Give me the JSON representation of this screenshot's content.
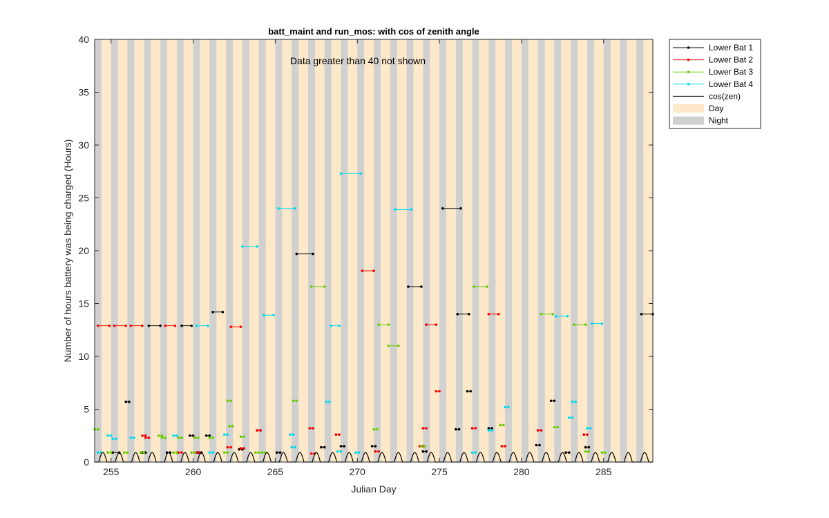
{
  "chart_data": {
    "type": "line",
    "title": "batt_maint and run_mos: with cos of zenith angle",
    "xlabel": "Julian Day",
    "ylabel": "Number of hours battery was being charged (Hours)",
    "annotation": "Data greater than 40 not shown",
    "xlim": [
      254,
      288
    ],
    "ylim": [
      0,
      40
    ],
    "xticks": [
      255,
      260,
      265,
      270,
      275,
      280,
      285
    ],
    "yticks": [
      0,
      5,
      10,
      15,
      20,
      25,
      30,
      35,
      40
    ],
    "legend_position": "outside-top-right",
    "day_night_bands": {
      "day_color": "#fde9c9",
      "night_color": "#d0d0d0",
      "day_start_fraction": 0.42,
      "day_length_fraction": 0.58
    },
    "series": [
      {
        "name": "Lower Bat 1",
        "color": "#000000",
        "segments": [
          [
            [
              255.1,
              0.9
            ],
            [
              255.5,
              0.9
            ]
          ],
          [
            [
              255.9,
              5.7
            ],
            [
              256.1,
              5.7
            ]
          ],
          [
            [
              256.9,
              0.9
            ],
            [
              257.1,
              0.9
            ]
          ],
          [
            [
              257.3,
              12.9
            ],
            [
              258.0,
              12.9
            ]
          ],
          [
            [
              258.4,
              0.9
            ],
            [
              258.6,
              0.9
            ]
          ],
          [
            [
              259.3,
              12.9
            ],
            [
              259.9,
              12.9
            ]
          ],
          [
            [
              259.8,
              2.5
            ],
            [
              260.0,
              2.5
            ]
          ],
          [
            [
              260.3,
              0.9
            ],
            [
              260.5,
              0.9
            ]
          ],
          [
            [
              260.8,
              2.5
            ],
            [
              261.0,
              2.5
            ]
          ],
          [
            [
              261.2,
              14.2
            ],
            [
              261.8,
              14.2
            ]
          ],
          [
            [
              262.8,
              1.2
            ],
            [
              263.0,
              1.2
            ]
          ],
          [
            [
              263.9,
              3.0
            ],
            [
              264.1,
              3.0
            ]
          ],
          [
            [
              265.1,
              0.9
            ],
            [
              265.3,
              0.9
            ]
          ],
          [
            [
              266.3,
              19.7
            ],
            [
              267.3,
              19.7
            ]
          ],
          [
            [
              267.8,
              1.4
            ],
            [
              268.0,
              1.4
            ]
          ],
          [
            [
              269.0,
              1.5
            ],
            [
              269.2,
              1.5
            ]
          ],
          [
            [
              270.9,
              1.5
            ],
            [
              271.1,
              1.5
            ]
          ],
          [
            [
              273.1,
              16.6
            ],
            [
              273.9,
              16.6
            ]
          ],
          [
            [
              274.0,
              1.0
            ],
            [
              274.2,
              1.0
            ]
          ],
          [
            [
              275.2,
              24.0
            ],
            [
              276.3,
              24.0
            ]
          ],
          [
            [
              276.0,
              3.1
            ],
            [
              276.2,
              3.1
            ]
          ],
          [
            [
              276.1,
              14.0
            ],
            [
              276.8,
              14.0
            ]
          ],
          [
            [
              276.7,
              6.7
            ],
            [
              276.9,
              6.7
            ]
          ],
          [
            [
              278.0,
              3.2
            ],
            [
              278.2,
              3.2
            ]
          ],
          [
            [
              280.9,
              1.6
            ],
            [
              281.1,
              1.6
            ]
          ],
          [
            [
              281.8,
              5.8
            ],
            [
              282.0,
              5.8
            ]
          ],
          [
            [
              282.7,
              0.9
            ],
            [
              282.9,
              0.9
            ]
          ],
          [
            [
              283.9,
              1.4
            ],
            [
              284.1,
              1.4
            ]
          ],
          [
            [
              287.3,
              14.0
            ],
            [
              288.0,
              14.0
            ]
          ]
        ]
      },
      {
        "name": "Lower Bat 2",
        "color": "#ff0000",
        "segments": [
          [
            [
              254.2,
              12.9
            ],
            [
              254.9,
              12.9
            ]
          ],
          [
            [
              255.2,
              12.9
            ],
            [
              255.9,
              12.9
            ]
          ],
          [
            [
              256.2,
              12.9
            ],
            [
              256.9,
              12.9
            ]
          ],
          [
            [
              256.9,
              2.5
            ],
            [
              257.1,
              2.5
            ]
          ],
          [
            [
              257.1,
              2.3
            ],
            [
              257.3,
              2.3
            ]
          ],
          [
            [
              258.3,
              12.9
            ],
            [
              258.9,
              12.9
            ]
          ],
          [
            [
              259.1,
              0.9
            ],
            [
              259.3,
              0.9
            ]
          ],
          [
            [
              260.2,
              0.9
            ],
            [
              260.4,
              0.9
            ]
          ],
          [
            [
              262.1,
              1.4
            ],
            [
              262.3,
              1.4
            ]
          ],
          [
            [
              262.3,
              12.8
            ],
            [
              262.9,
              12.8
            ]
          ],
          [
            [
              262.9,
              1.3
            ],
            [
              263.1,
              1.3
            ]
          ],
          [
            [
              263.9,
              3.0
            ],
            [
              264.1,
              3.0
            ]
          ],
          [
            [
              267.1,
              3.2
            ],
            [
              267.3,
              3.2
            ]
          ],
          [
            [
              267.2,
              0.8
            ],
            [
              267.4,
              0.8
            ]
          ],
          [
            [
              268.7,
              2.6
            ],
            [
              268.9,
              2.6
            ]
          ],
          [
            [
              270.3,
              18.1
            ],
            [
              271.0,
              18.1
            ]
          ],
          [
            [
              271.1,
              1.0
            ],
            [
              271.3,
              1.0
            ]
          ],
          [
            [
              273.8,
              1.5
            ],
            [
              274.0,
              1.5
            ]
          ],
          [
            [
              274.0,
              3.2
            ],
            [
              274.2,
              3.2
            ]
          ],
          [
            [
              274.2,
              13.0
            ],
            [
              274.8,
              13.0
            ]
          ],
          [
            [
              274.8,
              6.7
            ],
            [
              275.0,
              6.7
            ]
          ],
          [
            [
              277.0,
              3.2
            ],
            [
              277.2,
              3.2
            ]
          ],
          [
            [
              278.0,
              14.0
            ],
            [
              278.6,
              14.0
            ]
          ],
          [
            [
              278.8,
              1.5
            ],
            [
              279.0,
              1.5
            ]
          ],
          [
            [
              281.0,
              3.0
            ],
            [
              281.2,
              3.0
            ]
          ],
          [
            [
              283.8,
              2.6
            ],
            [
              284.0,
              2.6
            ]
          ]
        ]
      },
      {
        "name": "Lower Bat 3",
        "color": "#66cc00",
        "segments": [
          [
            [
              254.0,
              3.1
            ],
            [
              254.2,
              3.1
            ]
          ],
          [
            [
              254.8,
              0.9
            ],
            [
              255.0,
              0.9
            ]
          ],
          [
            [
              255.8,
              0.9
            ],
            [
              256.0,
              0.9
            ]
          ],
          [
            [
              256.8,
              0.9
            ],
            [
              257.0,
              0.9
            ]
          ],
          [
            [
              257.9,
              2.5
            ],
            [
              258.1,
              2.5
            ]
          ],
          [
            [
              258.1,
              2.3
            ],
            [
              258.3,
              2.3
            ]
          ],
          [
            [
              258.8,
              0.9
            ],
            [
              259.0,
              0.9
            ]
          ],
          [
            [
              259.1,
              2.3
            ],
            [
              259.3,
              2.3
            ]
          ],
          [
            [
              259.9,
              0.9
            ],
            [
              260.1,
              0.9
            ]
          ],
          [
            [
              260.1,
              2.3
            ],
            [
              260.3,
              2.3
            ]
          ],
          [
            [
              261.0,
              2.3
            ],
            [
              261.2,
              2.3
            ]
          ],
          [
            [
              261.9,
              0.9
            ],
            [
              262.1,
              0.9
            ]
          ],
          [
            [
              262.1,
              5.8
            ],
            [
              262.3,
              5.8
            ]
          ],
          [
            [
              262.2,
              3.4
            ],
            [
              262.4,
              3.4
            ]
          ],
          [
            [
              262.9,
              2.4
            ],
            [
              263.1,
              2.4
            ]
          ],
          [
            [
              263.8,
              0.9
            ],
            [
              264.0,
              0.9
            ]
          ],
          [
            [
              264.2,
              0.9
            ],
            [
              264.4,
              0.9
            ]
          ],
          [
            [
              266.1,
              5.8
            ],
            [
              266.3,
              5.8
            ]
          ],
          [
            [
              267.2,
              16.6
            ],
            [
              268.0,
              16.6
            ]
          ],
          [
            [
              271.0,
              3.1
            ],
            [
              271.2,
              3.1
            ]
          ],
          [
            [
              271.3,
              13.0
            ],
            [
              271.9,
              13.0
            ]
          ],
          [
            [
              271.9,
              11.0
            ],
            [
              272.5,
              11.0
            ]
          ],
          [
            [
              273.9,
              1.5
            ],
            [
              274.1,
              1.5
            ]
          ],
          [
            [
              277.1,
              16.6
            ],
            [
              277.9,
              16.6
            ]
          ],
          [
            [
              278.7,
              3.5
            ],
            [
              278.9,
              3.5
            ]
          ],
          [
            [
              281.2,
              14.0
            ],
            [
              281.9,
              14.0
            ]
          ],
          [
            [
              282.0,
              3.3
            ],
            [
              282.2,
              3.3
            ]
          ],
          [
            [
              283.2,
              13.0
            ],
            [
              283.9,
              13.0
            ]
          ],
          [
            [
              283.9,
              1.0
            ],
            [
              284.1,
              1.0
            ]
          ],
          [
            [
              284.9,
              0.9
            ],
            [
              285.1,
              0.9
            ]
          ]
        ]
      },
      {
        "name": "Lower Bat 4",
        "color": "#00d9ee",
        "segments": [
          [
            [
              254.2,
              0.9
            ],
            [
              254.4,
              0.9
            ]
          ],
          [
            [
              254.8,
              2.5
            ],
            [
              255.0,
              2.5
            ]
          ],
          [
            [
              255.1,
              2.2
            ],
            [
              255.3,
              2.2
            ]
          ],
          [
            [
              256.2,
              2.3
            ],
            [
              256.4,
              2.3
            ]
          ],
          [
            [
              258.8,
              2.5
            ],
            [
              259.0,
              2.5
            ]
          ],
          [
            [
              260.2,
              12.9
            ],
            [
              260.9,
              12.9
            ]
          ],
          [
            [
              261.0,
              0.9
            ],
            [
              261.2,
              0.9
            ]
          ],
          [
            [
              261.9,
              2.6
            ],
            [
              262.1,
              2.6
            ]
          ],
          [
            [
              263.0,
              20.4
            ],
            [
              263.9,
              20.4
            ]
          ],
          [
            [
              264.3,
              13.9
            ],
            [
              264.9,
              13.9
            ]
          ],
          [
            [
              265.2,
              24.0
            ],
            [
              266.2,
              24.0
            ]
          ],
          [
            [
              265.9,
              2.6
            ],
            [
              266.1,
              2.6
            ]
          ],
          [
            [
              266.0,
              1.4
            ],
            [
              266.2,
              1.4
            ]
          ],
          [
            [
              268.1,
              5.7
            ],
            [
              268.3,
              5.7
            ]
          ],
          [
            [
              268.4,
              12.9
            ],
            [
              268.9,
              12.9
            ]
          ],
          [
            [
              268.8,
              1.0
            ],
            [
              269.0,
              1.0
            ]
          ],
          [
            [
              269.0,
              27.3
            ],
            [
              270.2,
              27.3
            ]
          ],
          [
            [
              269.9,
              0.9
            ],
            [
              270.1,
              0.9
            ]
          ],
          [
            [
              272.3,
              23.9
            ],
            [
              273.3,
              23.9
            ]
          ],
          [
            [
              277.0,
              0.9
            ],
            [
              277.2,
              0.9
            ]
          ],
          [
            [
              278.0,
              3.0
            ],
            [
              278.2,
              3.0
            ]
          ],
          [
            [
              279.0,
              5.2
            ],
            [
              279.2,
              5.2
            ]
          ],
          [
            [
              282.1,
              13.8
            ],
            [
              282.8,
              13.8
            ]
          ],
          [
            [
              282.9,
              4.2
            ],
            [
              283.1,
              4.2
            ]
          ],
          [
            [
              283.1,
              5.7
            ],
            [
              283.3,
              5.7
            ]
          ],
          [
            [
              284.0,
              3.2
            ],
            [
              284.2,
              3.2
            ]
          ],
          [
            [
              284.3,
              13.1
            ],
            [
              284.9,
              13.1
            ]
          ]
        ]
      },
      {
        "name": "cos(zen)",
        "color": "#000000",
        "kind": "cos_zenith",
        "peak": 0.9
      }
    ],
    "band_legend": [
      {
        "name": "Day",
        "color": "#fde9c9"
      },
      {
        "name": "Night",
        "color": "#d0d0d0"
      }
    ]
  }
}
